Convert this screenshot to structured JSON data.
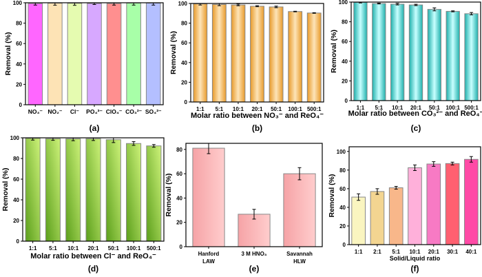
{
  "chart_data": [
    {
      "panel": "(a)",
      "type": "bar",
      "title": "",
      "xlabel": "",
      "ylabel": "Removal (%)",
      "ylim": [
        0,
        100
      ],
      "yticks": [
        0,
        20,
        40,
        60,
        80,
        100
      ],
      "categories": [
        "NO₃⁻",
        "NO₂⁻",
        "Cl⁻",
        "PO₄³⁻",
        "ClO₄⁻",
        "CO₃²⁻",
        "SO₄²⁻"
      ],
      "values": [
        99.2,
        99.6,
        99.5,
        99.3,
        99.2,
        99.7,
        99.7
      ],
      "errors": [
        1.5,
        2.0,
        2.0,
        1.0,
        1.5,
        2.0,
        2.0
      ],
      "colors": [
        "#ff66ff",
        "#fde3b5",
        "#e5fbb0",
        "#d7a8ff",
        "#ff8f8f",
        "#a8ffa8",
        "#b4bfff"
      ]
    },
    {
      "panel": "(b)",
      "type": "bar",
      "xlabel": "Molar ratio between NO₃⁻ and ReO₄⁻",
      "ylabel": "Removal (%)",
      "ylim": [
        0,
        100
      ],
      "yticks": [
        0,
        20,
        40,
        60,
        80,
        100
      ],
      "categories": [
        "1:1",
        "5:1",
        "10:1",
        "20:1",
        "50:1",
        "100:1",
        "500:1"
      ],
      "values": [
        99.6,
        99.0,
        98.5,
        97.2,
        96.5,
        91.8,
        90.3
      ],
      "errors": [
        1.2,
        1.3,
        0.9,
        0.5,
        0.8,
        0.3,
        0.3
      ],
      "colors": [
        "#e89a2a",
        "#fde4b8"
      ]
    },
    {
      "panel": "(c)",
      "type": "bar",
      "xlabel": "Molar ratio between CO₃²⁻ and ReO₄⁻",
      "ylabel": "Removal (%)",
      "ylim": [
        0,
        100
      ],
      "yticks": [
        0,
        20,
        40,
        60,
        80,
        100
      ],
      "categories": [
        "1:1",
        "5:1",
        "10:1",
        "20:1",
        "50:1",
        "100:1",
        "500:1"
      ],
      "values": [
        99.7,
        98.5,
        97.9,
        97.1,
        92.6,
        90.6,
        88.2
      ],
      "errors": [
        0.6,
        0.4,
        0.8,
        0.7,
        1.5,
        0.5,
        1.2
      ],
      "colors": [
        "#1fb0ac",
        "#c8ffff"
      ]
    },
    {
      "panel": "(d)",
      "type": "bar",
      "xlabel": "Molar ratio between Cl⁻ and ReO₄⁻",
      "ylabel": "Removal (%)",
      "ylim": [
        0,
        100
      ],
      "yticks": [
        0,
        20,
        40,
        60,
        80,
        100
      ],
      "categories": [
        "1:1",
        "5:1",
        "10:1",
        "20:1",
        "50:1",
        "100:1",
        "500:1"
      ],
      "values": [
        99.5,
        99.1,
        99.0,
        99.1,
        98.2,
        94.5,
        92.2
      ],
      "errors": [
        1.7,
        1.5,
        1.8,
        1.7,
        2.8,
        1.8,
        1.3
      ],
      "colors": [
        "#5a9e1a",
        "#cdf27a"
      ]
    },
    {
      "panel": "(e)",
      "type": "bar",
      "xlabel": "",
      "ylabel": "Removal (%)",
      "ylim": [
        0,
        85
      ],
      "yticks": [
        0,
        20,
        40,
        60,
        80
      ],
      "categories": [
        [
          "Hanford",
          "LAW"
        ],
        [
          "3 M HNO₃"
        ],
        [
          "Savannah",
          "HLW"
        ]
      ],
      "values": [
        81.0,
        26.7,
        60.0
      ],
      "errors": [
        4.5,
        4.0,
        5.0
      ],
      "colors": [
        "#f6a3a6",
        "#ffcdcd"
      ]
    },
    {
      "panel": "(f)",
      "type": "bar",
      "xlabel": "Solid/Liquid ratio",
      "ylabel": "Removal (%)",
      "ylim": [
        0,
        105
      ],
      "yticks": [
        0,
        20,
        40,
        60,
        80,
        100
      ],
      "categories": [
        "1:1",
        "2:1",
        "5:1",
        "10:1",
        "20:1",
        "30:1",
        "40:1"
      ],
      "values": [
        51.0,
        57.0,
        61.0,
        82.5,
        86.5,
        87.0,
        91.5
      ],
      "errors": [
        3.5,
        3.0,
        1.5,
        3.0,
        2.5,
        1.5,
        3.0
      ],
      "colors": [
        "#faf5c0",
        "#f3d591",
        "#f8b78a",
        "#ffb0da",
        "#f77ac4",
        "#ff6070",
        "#ff4aa6"
      ]
    }
  ]
}
